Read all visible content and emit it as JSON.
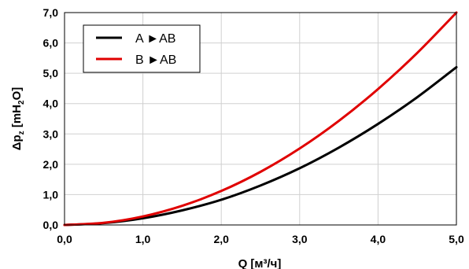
{
  "chart_data": {
    "type": "line",
    "xlabel": "Q [м³/ч]",
    "ylabel_main": "Δp",
    "ylabel_sub": "z",
    "ylabel_unit_main": " [mH",
    "ylabel_unit_sub": "2",
    "ylabel_unit_end": "O]",
    "xlim": [
      0,
      5
    ],
    "ylim": [
      0,
      7
    ],
    "x_ticks": [
      0,
      1,
      2,
      3,
      4,
      5
    ],
    "x_tick_labels": [
      "0,0",
      "1,0",
      "2,0",
      "3,0",
      "4,0",
      "5,0"
    ],
    "y_ticks": [
      0,
      1,
      2,
      3,
      4,
      5,
      6,
      7
    ],
    "y_tick_labels": [
      "0,0",
      "1,0",
      "2,0",
      "3,0",
      "4,0",
      "5,0",
      "6,0",
      "7,0"
    ],
    "grid": true,
    "legend_position": "top-left",
    "series": [
      {
        "name": "A ►AB",
        "color": "#000000",
        "x": [
          0,
          0.5,
          1.0,
          1.5,
          2.0,
          2.5,
          3.0,
          3.5,
          4.0,
          4.5,
          5.0
        ],
        "y": [
          0,
          0.06,
          0.22,
          0.48,
          0.83,
          1.3,
          1.87,
          2.55,
          3.33,
          4.21,
          5.2
        ]
      },
      {
        "name": "B ►AB",
        "color": "#e00000",
        "x": [
          0,
          0.5,
          1.0,
          1.5,
          2.0,
          2.5,
          3.0,
          3.5,
          4.0,
          4.5,
          5.0
        ],
        "y": [
          0,
          0.07,
          0.28,
          0.63,
          1.12,
          1.75,
          2.52,
          3.43,
          4.48,
          5.67,
          7.0
        ]
      }
    ]
  }
}
